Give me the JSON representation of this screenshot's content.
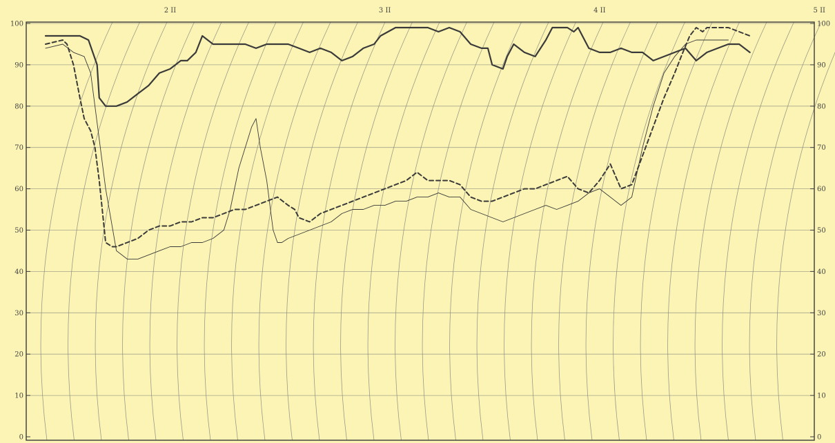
{
  "chart_data": {
    "type": "line",
    "colors": {
      "background": "#fbf4b4",
      "ink": "#3a3a3a",
      "grid": "#8a8a80"
    },
    "grid": true,
    "ylim": [
      0,
      100
    ],
    "yticks_left": [
      "0",
      "10",
      "20",
      "30",
      "40",
      "50",
      "60",
      "70",
      "80",
      "90",
      "100"
    ],
    "yticks_right": [
      "0",
      "10",
      "20",
      "30",
      "40",
      "50",
      "60",
      "70",
      "80",
      "90",
      "100"
    ],
    "xlim": [
      1.33,
      5.0
    ],
    "xticks": [
      {
        "label": "2 II",
        "x": 2.0
      },
      {
        "label": "3 II",
        "x": 3.0
      },
      {
        "label": "4 II",
        "x": 4.0
      },
      {
        "label": "5 II",
        "x": 5.0
      }
    ],
    "series": [
      {
        "style": "solid-thick",
        "x": [
          1.42,
          1.5,
          1.58,
          1.62,
          1.66,
          1.67,
          1.7,
          1.75,
          1.8,
          1.85,
          1.9,
          1.95,
          2.0,
          2.05,
          2.08,
          2.12,
          2.15,
          2.2,
          2.25,
          2.3,
          2.35,
          2.4,
          2.45,
          2.5,
          2.55,
          2.6,
          2.65,
          2.7,
          2.75,
          2.8,
          2.85,
          2.9,
          2.95,
          2.98,
          3.05,
          3.1,
          3.15,
          3.2,
          3.25,
          3.3,
          3.35,
          3.4,
          3.45,
          3.48,
          3.5,
          3.55,
          3.57,
          3.6,
          3.65,
          3.7,
          3.75,
          3.78,
          3.8,
          3.85,
          3.88,
          3.9,
          3.95,
          4.0,
          4.05,
          4.1,
          4.15,
          4.2,
          4.25,
          4.3,
          4.35,
          4.4,
          4.45,
          4.5,
          4.55,
          4.6,
          4.65,
          4.7
        ],
        "y": [
          97,
          97,
          97,
          96,
          90,
          82,
          80,
          80,
          81,
          83,
          85,
          88,
          89,
          91,
          91,
          93,
          97,
          95,
          95,
          95,
          95,
          94,
          95,
          95,
          95,
          94,
          93,
          94,
          93,
          91,
          92,
          94,
          95,
          97,
          99,
          99,
          99,
          99,
          98,
          99,
          98,
          95,
          94,
          94,
          90,
          89,
          92,
          95,
          93,
          92,
          96,
          99,
          99,
          99,
          98,
          99,
          94,
          93,
          93,
          94,
          93,
          93,
          91,
          92,
          93,
          94,
          91,
          93,
          94,
          95,
          95,
          93
        ]
      },
      {
        "style": "dashed-thick",
        "x": [
          1.42,
          1.5,
          1.52,
          1.55,
          1.58,
          1.6,
          1.63,
          1.65,
          1.67,
          1.7,
          1.73,
          1.75,
          1.8,
          1.85,
          1.9,
          1.95,
          2.0,
          2.05,
          2.1,
          2.15,
          2.2,
          2.25,
          2.3,
          2.35,
          2.4,
          2.45,
          2.5,
          2.55,
          2.58,
          2.6,
          2.65,
          2.7,
          2.75,
          2.8,
          2.85,
          2.9,
          2.95,
          3.0,
          3.05,
          3.1,
          3.15,
          3.2,
          3.25,
          3.3,
          3.35,
          3.4,
          3.45,
          3.5,
          3.55,
          3.6,
          3.65,
          3.7,
          3.75,
          3.8,
          3.85,
          3.9,
          3.95,
          4.0,
          4.05,
          4.1,
          4.15,
          4.2,
          4.25,
          4.3,
          4.35,
          4.38,
          4.42,
          4.45,
          4.48,
          4.5,
          4.55,
          4.6,
          4.65,
          4.7
        ],
        "y": [
          95,
          96,
          95,
          90,
          82,
          77,
          74,
          70,
          62,
          47,
          46,
          46,
          47,
          48,
          50,
          51,
          51,
          52,
          52,
          53,
          53,
          54,
          55,
          55,
          56,
          57,
          58,
          56,
          55,
          53,
          52,
          54,
          55,
          56,
          57,
          58,
          59,
          60,
          61,
          62,
          64,
          62,
          62,
          62,
          61,
          58,
          57,
          57,
          58,
          59,
          60,
          60,
          61,
          62,
          63,
          60,
          59,
          62,
          66,
          60,
          61,
          68,
          75,
          82,
          88,
          92,
          97,
          99,
          98,
          99,
          99,
          99,
          98,
          97
        ]
      },
      {
        "style": "thin",
        "x": [
          1.42,
          1.5,
          1.55,
          1.6,
          1.63,
          1.65,
          1.7,
          1.75,
          1.8,
          1.85,
          1.9,
          1.95,
          2.0,
          2.05,
          2.1,
          2.15,
          2.2,
          2.25,
          2.28,
          2.3,
          2.32,
          2.35,
          2.38,
          2.4,
          2.42,
          2.45,
          2.48,
          2.5,
          2.52,
          2.55,
          2.6,
          2.65,
          2.7,
          2.75,
          2.8,
          2.85,
          2.9,
          2.95,
          3.0,
          3.05,
          3.1,
          3.15,
          3.2,
          3.25,
          3.3,
          3.35,
          3.4,
          3.45,
          3.5,
          3.55,
          3.6,
          3.65,
          3.7,
          3.75,
          3.8,
          3.85,
          3.9,
          3.95,
          4.0,
          4.05,
          4.1,
          4.15,
          4.2,
          4.25,
          4.3,
          4.35,
          4.4,
          4.45,
          4.5,
          4.55,
          4.6
        ],
        "y": [
          94,
          95,
          93,
          92,
          88,
          80,
          60,
          45,
          43,
          43,
          44,
          45,
          46,
          46,
          47,
          47,
          48,
          50,
          55,
          60,
          65,
          70,
          75,
          77,
          70,
          62,
          50,
          47,
          47,
          48,
          49,
          50,
          51,
          52,
          54,
          55,
          55,
          56,
          56,
          57,
          57,
          58,
          58,
          59,
          58,
          58,
          55,
          54,
          53,
          52,
          53,
          54,
          55,
          56,
          55,
          56,
          57,
          59,
          60,
          58,
          56,
          58,
          70,
          80,
          88,
          92,
          95,
          96,
          96,
          96,
          96
        ]
      }
    ]
  }
}
